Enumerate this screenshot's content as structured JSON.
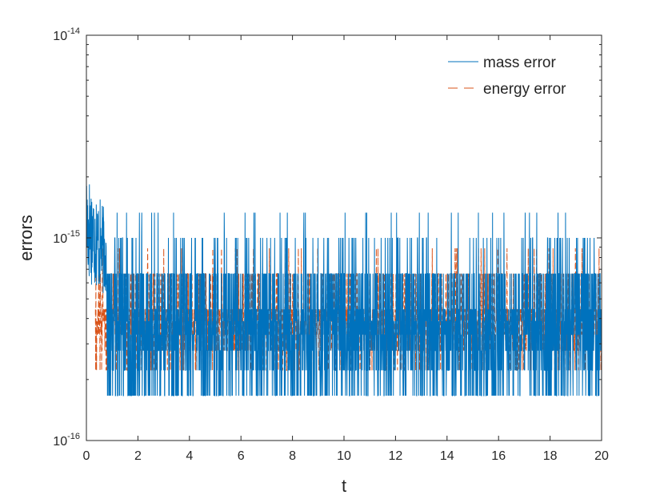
{
  "chart_data": {
    "type": "line",
    "xlabel": "t",
    "ylabel": "errors",
    "xlim": [
      0,
      20
    ],
    "ylim": [
      1e-16,
      1e-14
    ],
    "yscale": "log",
    "grid": false,
    "legend_position": "top-right",
    "x_ticks": [
      "0",
      "2",
      "4",
      "6",
      "8",
      "10",
      "12",
      "14",
      "16",
      "18",
      "20"
    ],
    "y_ticks": [
      {
        "base": "10",
        "exp": "-16",
        "value": 1e-16
      },
      {
        "base": "10",
        "exp": "-15",
        "value": 1e-15
      },
      {
        "base": "10",
        "exp": "-14",
        "value": 1e-14
      }
    ],
    "series": [
      {
        "name": "mass error",
        "color": "#0072BD",
        "style": "solid",
        "levels": [
          1.665e-16,
          2.22e-16,
          2.776e-16,
          3.331e-16,
          3.886e-16,
          4.441e-16,
          6.661e-16,
          1e-15,
          1.332e-15
        ],
        "early_t_range": [
          0,
          0.8
        ],
        "early_peak": 2.3e-15
      },
      {
        "name": "energy error",
        "color": "#D95319",
        "style": "dashed",
        "levels": [
          2.22e-16,
          2.776e-16,
          3.331e-16,
          3.886e-16,
          4.441e-16,
          6.661e-16,
          8.882e-16
        ],
        "t_start": 0.35
      }
    ]
  }
}
